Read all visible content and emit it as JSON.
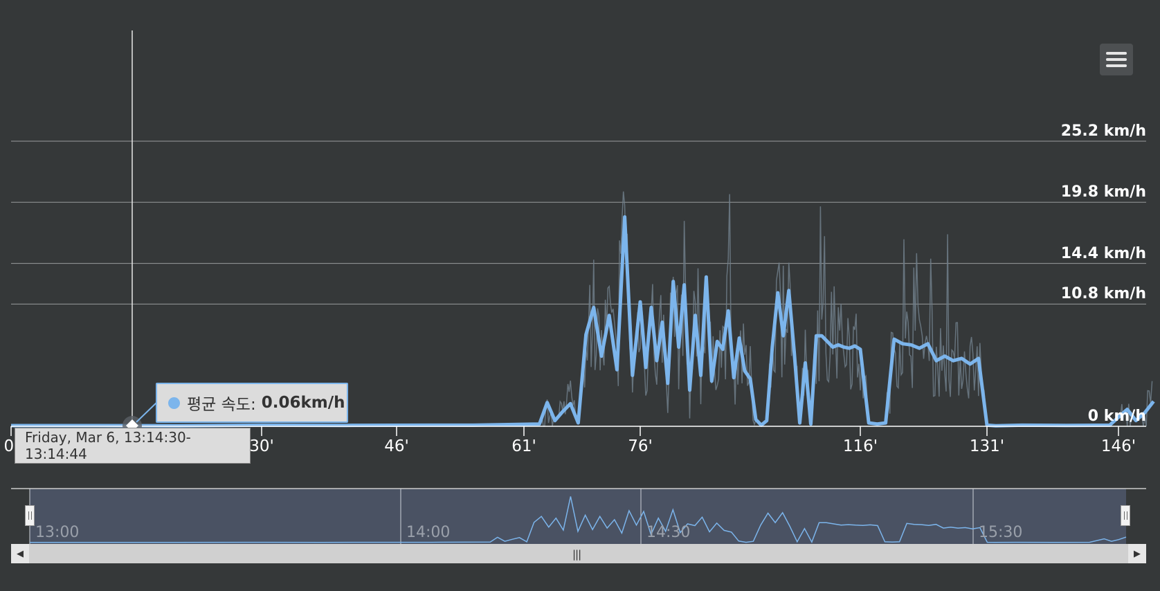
{
  "menu": {
    "icon": "hamburger-menu-icon"
  },
  "tooltip": {
    "series_label": "평균 속도:",
    "value": "0.06km/h",
    "time": "Friday, Mar 6, 13:14:30-13:14:44"
  },
  "colors": {
    "background": "#353839",
    "series": "#7cb5ec",
    "raw_series": "#6e7e8a",
    "navigator": "#4a5263"
  },
  "navigator": {
    "ticks": [
      "13:00",
      "14:00",
      "14:30",
      "15:30"
    ]
  },
  "chart_data": {
    "type": "line",
    "title": "",
    "xlabel": "",
    "ylabel": "",
    "x_ticks": [
      "0'",
      "30'",
      "46'",
      "61'",
      "76'",
      "116'",
      "131'",
      "146'"
    ],
    "y_ticks": [
      "0 km/h",
      "10.8 km/h",
      "14.4 km/h",
      "19.8 km/h",
      "25.2 km/h"
    ],
    "y_tick_values": [
      0,
      10.8,
      14.4,
      19.8,
      25.2
    ],
    "grid": true,
    "series": [
      {
        "name": "평균 속도",
        "x": [
          0,
          10,
          20,
          30,
          40,
          50,
          55,
          63,
          64,
          65,
          66,
          67,
          68,
          69,
          70,
          71,
          72,
          73,
          74,
          75,
          76,
          77,
          78,
          79,
          80,
          81,
          82,
          83,
          84,
          85,
          86,
          87,
          88,
          89,
          90,
          91,
          92,
          93,
          94,
          95,
          96,
          97,
          98,
          99,
          100,
          101,
          102,
          103,
          104,
          105,
          106,
          107,
          108,
          109,
          110,
          111,
          112,
          113,
          114,
          115,
          116,
          117,
          118,
          119,
          120,
          121,
          122,
          123,
          124,
          125,
          126,
          127,
          128,
          129,
          130,
          131,
          132,
          135,
          140,
          145,
          147,
          148,
          149,
          150
        ],
        "y": [
          0.06,
          0.06,
          0.05,
          0.1,
          0.08,
          0.1,
          0.1,
          0.2,
          2.1,
          0.5,
          1.3,
          2.0,
          0.3,
          8.1,
          10.5,
          6.2,
          9.8,
          5.0,
          18.5,
          4.5,
          11.0,
          5.2,
          10.5,
          5.8,
          9.2,
          3.8,
          12.8,
          7.0,
          12.5,
          3.2,
          9.8,
          4.5,
          13.2,
          4.0,
          7.5,
          6.8,
          10.2,
          4.3,
          7.8,
          4.9,
          4.2,
          0.6,
          0.1,
          0.5,
          7.0,
          11.8,
          8.0,
          12.0,
          6.5,
          0.3,
          5.6,
          0.2,
          8.0,
          8.0,
          7.5,
          7.0,
          7.2,
          7.0,
          6.9,
          7.1,
          6.8,
          0.3,
          0.2,
          0.3,
          7.7,
          7.3,
          7.2,
          6.9,
          7.3,
          5.8,
          6.2,
          5.8,
          6.0,
          5.5,
          6.0,
          0.1,
          0.05,
          0.1,
          0.08,
          0.1,
          1.5,
          0.5,
          1.2,
          2.2
        ]
      }
    ]
  }
}
